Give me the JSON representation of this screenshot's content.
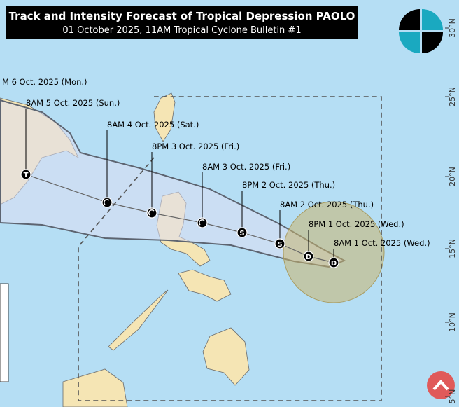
{
  "header": {
    "title": "Track and Intensity Forecast of Tropical Depression PAOLO",
    "subtitle": "01 October 2025, 11AM Tropical Cyclone Bulletin #1"
  },
  "forecast_points": [
    {
      "label": "8AM 1 Oct. 2025 (Wed.)",
      "marker": "D"
    },
    {
      "label": "8PM 1 Oct. 2025 (Wed.)",
      "marker": "D"
    },
    {
      "label": "8AM 2 Oct. 2025 (Thu.)",
      "marker": "S"
    },
    {
      "label": "8PM 2 Oct. 2025 (Thu.)",
      "marker": "S"
    },
    {
      "label": "8AM 3 Oct. 2025 (Fri.)"
    },
    {
      "label": "8PM 3 Oct. 2025 (Fri.)"
    },
    {
      "label": "8AM 4 Oct. 2025 (Sat.)"
    },
    {
      "label": "8AM 5 Oct. 2025 (Sun.)",
      "marker": "T"
    },
    {
      "label": "M 6 Oct. 2025 (Mon.)"
    }
  ],
  "latitude_labels": [
    "30°N",
    "25°N",
    "20°N",
    "15°N",
    "10°N",
    "5°N"
  ]
}
